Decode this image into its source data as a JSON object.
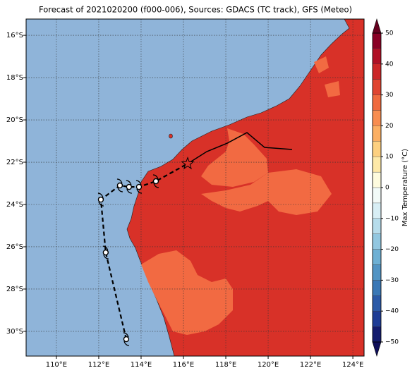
{
  "chart_data": {
    "type": "map",
    "title": "Forecast of 2021020200 (f000-006), Sources: GDACS (TC track), GFS (Meteo)",
    "xlim": [
      108.57,
      124.53
    ],
    "ylim": [
      -31.17,
      -15.23
    ],
    "xticks": [
      {
        "value": 110,
        "label": "110°E"
      },
      {
        "value": 112,
        "label": "112°E"
      },
      {
        "value": 114,
        "label": "114°E"
      },
      {
        "value": 116,
        "label": "116°E"
      },
      {
        "value": 118,
        "label": "118°E"
      },
      {
        "value": 120,
        "label": "120°E"
      },
      {
        "value": 122,
        "label": "122°E"
      },
      {
        "value": 124,
        "label": "124°E"
      }
    ],
    "yticks": [
      {
        "value": -16,
        "label": "16°S"
      },
      {
        "value": -18,
        "label": "18°S"
      },
      {
        "value": -20,
        "label": "20°S"
      },
      {
        "value": -22,
        "label": "22°S"
      },
      {
        "value": -24,
        "label": "24°S"
      },
      {
        "value": -26,
        "label": "26°S"
      },
      {
        "value": -28,
        "label": "28°S"
      },
      {
        "value": -30,
        "label": "30°S"
      }
    ],
    "grid": true,
    "forecast_track": {
      "lon": [
        113.3,
        112.33,
        112.1,
        113.0,
        113.43,
        113.9,
        114.7,
        116.2
      ],
      "lat": [
        -30.37,
        -26.27,
        -23.77,
        -23.1,
        -23.17,
        -23.17,
        -22.9,
        -22.07
      ],
      "color": "#000000"
    },
    "past_track": {
      "lon": [
        116.2,
        117.1,
        118.07,
        119.0,
        119.83,
        121.13
      ],
      "lat": [
        -22.07,
        -21.5,
        -21.1,
        -20.6,
        -21.3,
        -21.4
      ],
      "color": "#000000"
    },
    "colorbar": {
      "label": "Max Temperature (°C)",
      "clim": [
        -50,
        50
      ],
      "ticks": [
        {
          "value": -50,
          "label": "−50"
        },
        {
          "value": -40,
          "label": "−40"
        },
        {
          "value": -30,
          "label": "−30"
        },
        {
          "value": -20,
          "label": "−20"
        },
        {
          "value": -10,
          "label": "−10"
        },
        0,
        10,
        20,
        30,
        40,
        50
      ],
      "levels": [
        -50,
        -45,
        -40,
        -35,
        -30,
        -25,
        -20,
        -15,
        -10,
        -5,
        0,
        5,
        10,
        15,
        20,
        25,
        30,
        35,
        40,
        45,
        50
      ],
      "colors": [
        "#141c6e",
        "#1e3c96",
        "#2b5aa8",
        "#3a78b6",
        "#5294c4",
        "#6eb0d4",
        "#92c7e0",
        "#b6dceb",
        "#d8eef5",
        "#f2faf8",
        "#fefbde",
        "#fee9a8",
        "#fdd080",
        "#fcaf63",
        "#f88d50",
        "#f06a3e",
        "#e04430",
        "#cc2628",
        "#b01026",
        "#8a0025"
      ],
      "under_color": "#0f0f5a",
      "over_color": "#66001f"
    }
  }
}
